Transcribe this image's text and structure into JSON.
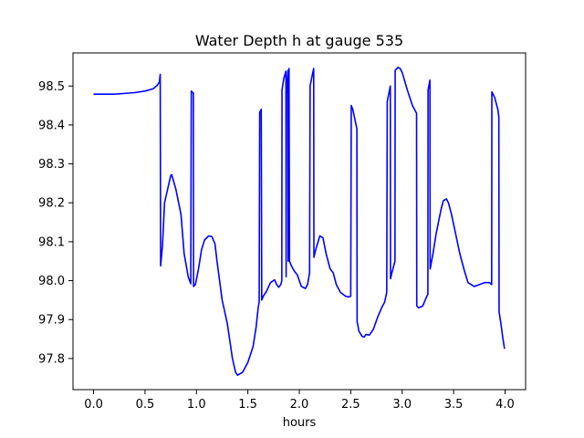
{
  "chart_data": {
    "type": "line",
    "title": "Water Depth h at gauge 535",
    "xlabel": "hours",
    "ylabel": "",
    "xlim": [
      -0.2,
      4.2
    ],
    "ylim": [
      97.72,
      98.585
    ],
    "grid": false,
    "xticks": [
      0.0,
      0.5,
      1.0,
      1.5,
      2.0,
      2.5,
      3.0,
      3.5,
      4.0
    ],
    "xtick_labels": [
      "0.0",
      "0.5",
      "1.0",
      "1.5",
      "2.0",
      "2.5",
      "3.0",
      "3.5",
      "4.0"
    ],
    "yticks": [
      97.8,
      97.9,
      98.0,
      98.1,
      98.2,
      98.3,
      98.4,
      98.5
    ],
    "ytick_labels": [
      "97.8",
      "97.9",
      "98.0",
      "98.1",
      "98.2",
      "98.3",
      "98.4",
      "98.5"
    ],
    "series": [
      {
        "color": "#0000ff",
        "points": [
          [
            0.0,
            98.479
          ],
          [
            0.1,
            98.479
          ],
          [
            0.2,
            98.479
          ],
          [
            0.3,
            98.481
          ],
          [
            0.4,
            98.483
          ],
          [
            0.5,
            98.487
          ],
          [
            0.58,
            98.493
          ],
          [
            0.62,
            98.502
          ],
          [
            0.64,
            98.51
          ],
          [
            0.648,
            98.53
          ],
          [
            0.652,
            98.038
          ],
          [
            0.67,
            98.09
          ],
          [
            0.69,
            98.2
          ],
          [
            0.72,
            98.235
          ],
          [
            0.75,
            98.27
          ],
          [
            0.76,
            98.272
          ],
          [
            0.8,
            98.235
          ],
          [
            0.85,
            98.17
          ],
          [
            0.88,
            98.07
          ],
          [
            0.92,
            98.01
          ],
          [
            0.945,
            97.992
          ],
          [
            0.95,
            98.487
          ],
          [
            0.96,
            98.484
          ],
          [
            0.97,
            98.482
          ],
          [
            0.972,
            97.985
          ],
          [
            0.99,
            97.99
          ],
          [
            1.02,
            98.03
          ],
          [
            1.05,
            98.08
          ],
          [
            1.08,
            98.105
          ],
          [
            1.12,
            98.115
          ],
          [
            1.15,
            98.113
          ],
          [
            1.18,
            98.095
          ],
          [
            1.2,
            98.05
          ],
          [
            1.25,
            97.95
          ],
          [
            1.3,
            97.89
          ],
          [
            1.35,
            97.8
          ],
          [
            1.38,
            97.765
          ],
          [
            1.4,
            97.757
          ],
          [
            1.45,
            97.765
          ],
          [
            1.5,
            97.79
          ],
          [
            1.55,
            97.83
          ],
          [
            1.58,
            97.88
          ],
          [
            1.6,
            97.93
          ],
          [
            1.61,
            97.945
          ],
          [
            1.615,
            98.432
          ],
          [
            1.63,
            98.44
          ],
          [
            1.635,
            97.95
          ],
          [
            1.65,
            97.96
          ],
          [
            1.68,
            97.972
          ],
          [
            1.72,
            97.995
          ],
          [
            1.76,
            98.002
          ],
          [
            1.78,
            97.99
          ],
          [
            1.8,
            97.983
          ],
          [
            1.82,
            97.99
          ],
          [
            1.83,
            98.0
          ],
          [
            1.832,
            98.49
          ],
          [
            1.85,
            98.52
          ],
          [
            1.87,
            98.538
          ],
          [
            1.872,
            98.01
          ],
          [
            1.875,
            98.48
          ],
          [
            1.89,
            98.54
          ],
          [
            1.892,
            98.05
          ],
          [
            1.895,
            98.06
          ],
          [
            1.898,
            98.52
          ],
          [
            1.9,
            98.545
          ],
          [
            1.905,
            98.05
          ],
          [
            1.92,
            98.04
          ],
          [
            1.95,
            98.025
          ],
          [
            1.98,
            98.015
          ],
          [
            2.02,
            97.985
          ],
          [
            2.06,
            97.98
          ],
          [
            2.08,
            97.99
          ],
          [
            2.1,
            98.02
          ],
          [
            2.105,
            98.5
          ],
          [
            2.12,
            98.52
          ],
          [
            2.14,
            98.545
          ],
          [
            2.142,
            98.06
          ],
          [
            2.16,
            98.08
          ],
          [
            2.2,
            98.115
          ],
          [
            2.23,
            98.11
          ],
          [
            2.26,
            98.07
          ],
          [
            2.3,
            98.03
          ],
          [
            2.33,
            98.02
          ],
          [
            2.36,
            97.99
          ],
          [
            2.4,
            97.97
          ],
          [
            2.45,
            97.96
          ],
          [
            2.48,
            97.958
          ],
          [
            2.5,
            97.96
          ],
          [
            2.505,
            98.45
          ],
          [
            2.52,
            98.44
          ],
          [
            2.56,
            98.39
          ],
          [
            2.562,
            97.895
          ],
          [
            2.58,
            97.87
          ],
          [
            2.61,
            97.857
          ],
          [
            2.63,
            97.855
          ],
          [
            2.65,
            97.862
          ],
          [
            2.68,
            97.86
          ],
          [
            2.72,
            97.875
          ],
          [
            2.76,
            97.905
          ],
          [
            2.8,
            97.93
          ],
          [
            2.83,
            97.945
          ],
          [
            2.85,
            97.97
          ],
          [
            2.855,
            98.46
          ],
          [
            2.87,
            98.48
          ],
          [
            2.885,
            98.5
          ],
          [
            2.887,
            98.005
          ],
          [
            2.9,
            98.02
          ],
          [
            2.92,
            98.04
          ],
          [
            2.93,
            98.05
          ],
          [
            2.932,
            98.54
          ],
          [
            2.96,
            98.548
          ],
          [
            2.98,
            98.545
          ],
          [
            3.0,
            98.535
          ],
          [
            3.05,
            98.49
          ],
          [
            3.1,
            98.45
          ],
          [
            3.14,
            98.43
          ],
          [
            3.142,
            97.935
          ],
          [
            3.16,
            97.93
          ],
          [
            3.2,
            97.935
          ],
          [
            3.24,
            97.96
          ],
          [
            3.25,
            97.965
          ],
          [
            3.252,
            98.49
          ],
          [
            3.27,
            98.515
          ],
          [
            3.272,
            98.03
          ],
          [
            3.3,
            98.07
          ],
          [
            3.33,
            98.12
          ],
          [
            3.36,
            98.16
          ],
          [
            3.38,
            98.185
          ],
          [
            3.4,
            98.205
          ],
          [
            3.43,
            98.21
          ],
          [
            3.45,
            98.2
          ],
          [
            3.48,
            98.17
          ],
          [
            3.52,
            98.12
          ],
          [
            3.56,
            98.07
          ],
          [
            3.6,
            98.03
          ],
          [
            3.64,
            97.995
          ],
          [
            3.7,
            97.985
          ],
          [
            3.75,
            97.99
          ],
          [
            3.8,
            97.995
          ],
          [
            3.85,
            97.995
          ],
          [
            3.87,
            97.99
          ],
          [
            3.872,
            98.485
          ],
          [
            3.9,
            98.47
          ],
          [
            3.93,
            98.44
          ],
          [
            3.94,
            98.42
          ],
          [
            3.942,
            97.92
          ],
          [
            3.96,
            97.89
          ],
          [
            3.98,
            97.85
          ],
          [
            3.995,
            97.825
          ]
        ]
      }
    ]
  }
}
